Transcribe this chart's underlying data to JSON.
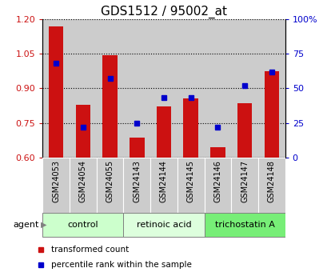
{
  "title": "GDS1512 / 95002_at",
  "samples": [
    "GSM24053",
    "GSM24054",
    "GSM24055",
    "GSM24143",
    "GSM24144",
    "GSM24145",
    "GSM24146",
    "GSM24147",
    "GSM24148"
  ],
  "transformed_count": [
    1.17,
    0.83,
    1.045,
    0.685,
    0.82,
    0.855,
    0.645,
    0.835,
    0.975
  ],
  "percentile_rank": [
    68,
    22,
    57,
    25,
    43,
    43,
    22,
    52,
    62
  ],
  "bar_color": "#cc1111",
  "dot_color": "#0000cc",
  "ylim_left": [
    0.6,
    1.2
  ],
  "ylim_right": [
    0,
    100
  ],
  "yticks_left": [
    0.6,
    0.75,
    0.9,
    1.05,
    1.2
  ],
  "yticks_right": [
    0,
    25,
    50,
    75,
    100
  ],
  "ytick_labels_right": [
    "0",
    "25",
    "50",
    "75",
    "100%"
  ],
  "groups": [
    {
      "label": "control",
      "indices": [
        0,
        1,
        2
      ],
      "color": "#ccffcc"
    },
    {
      "label": "retinoic acid",
      "indices": [
        3,
        4,
        5
      ],
      "color": "#ddffdd"
    },
    {
      "label": "trichostatin A",
      "indices": [
        6,
        7,
        8
      ],
      "color": "#77ee77"
    }
  ],
  "agent_label": "agent",
  "legend_bar_label": "transformed count",
  "legend_dot_label": "percentile rank within the sample",
  "bar_width": 0.55,
  "plot_bg_color": "#ffffff",
  "tick_label_color_left": "#cc1111",
  "tick_label_color_right": "#0000cc",
  "cell_bg_color": "#cccccc",
  "title_fontsize": 11
}
